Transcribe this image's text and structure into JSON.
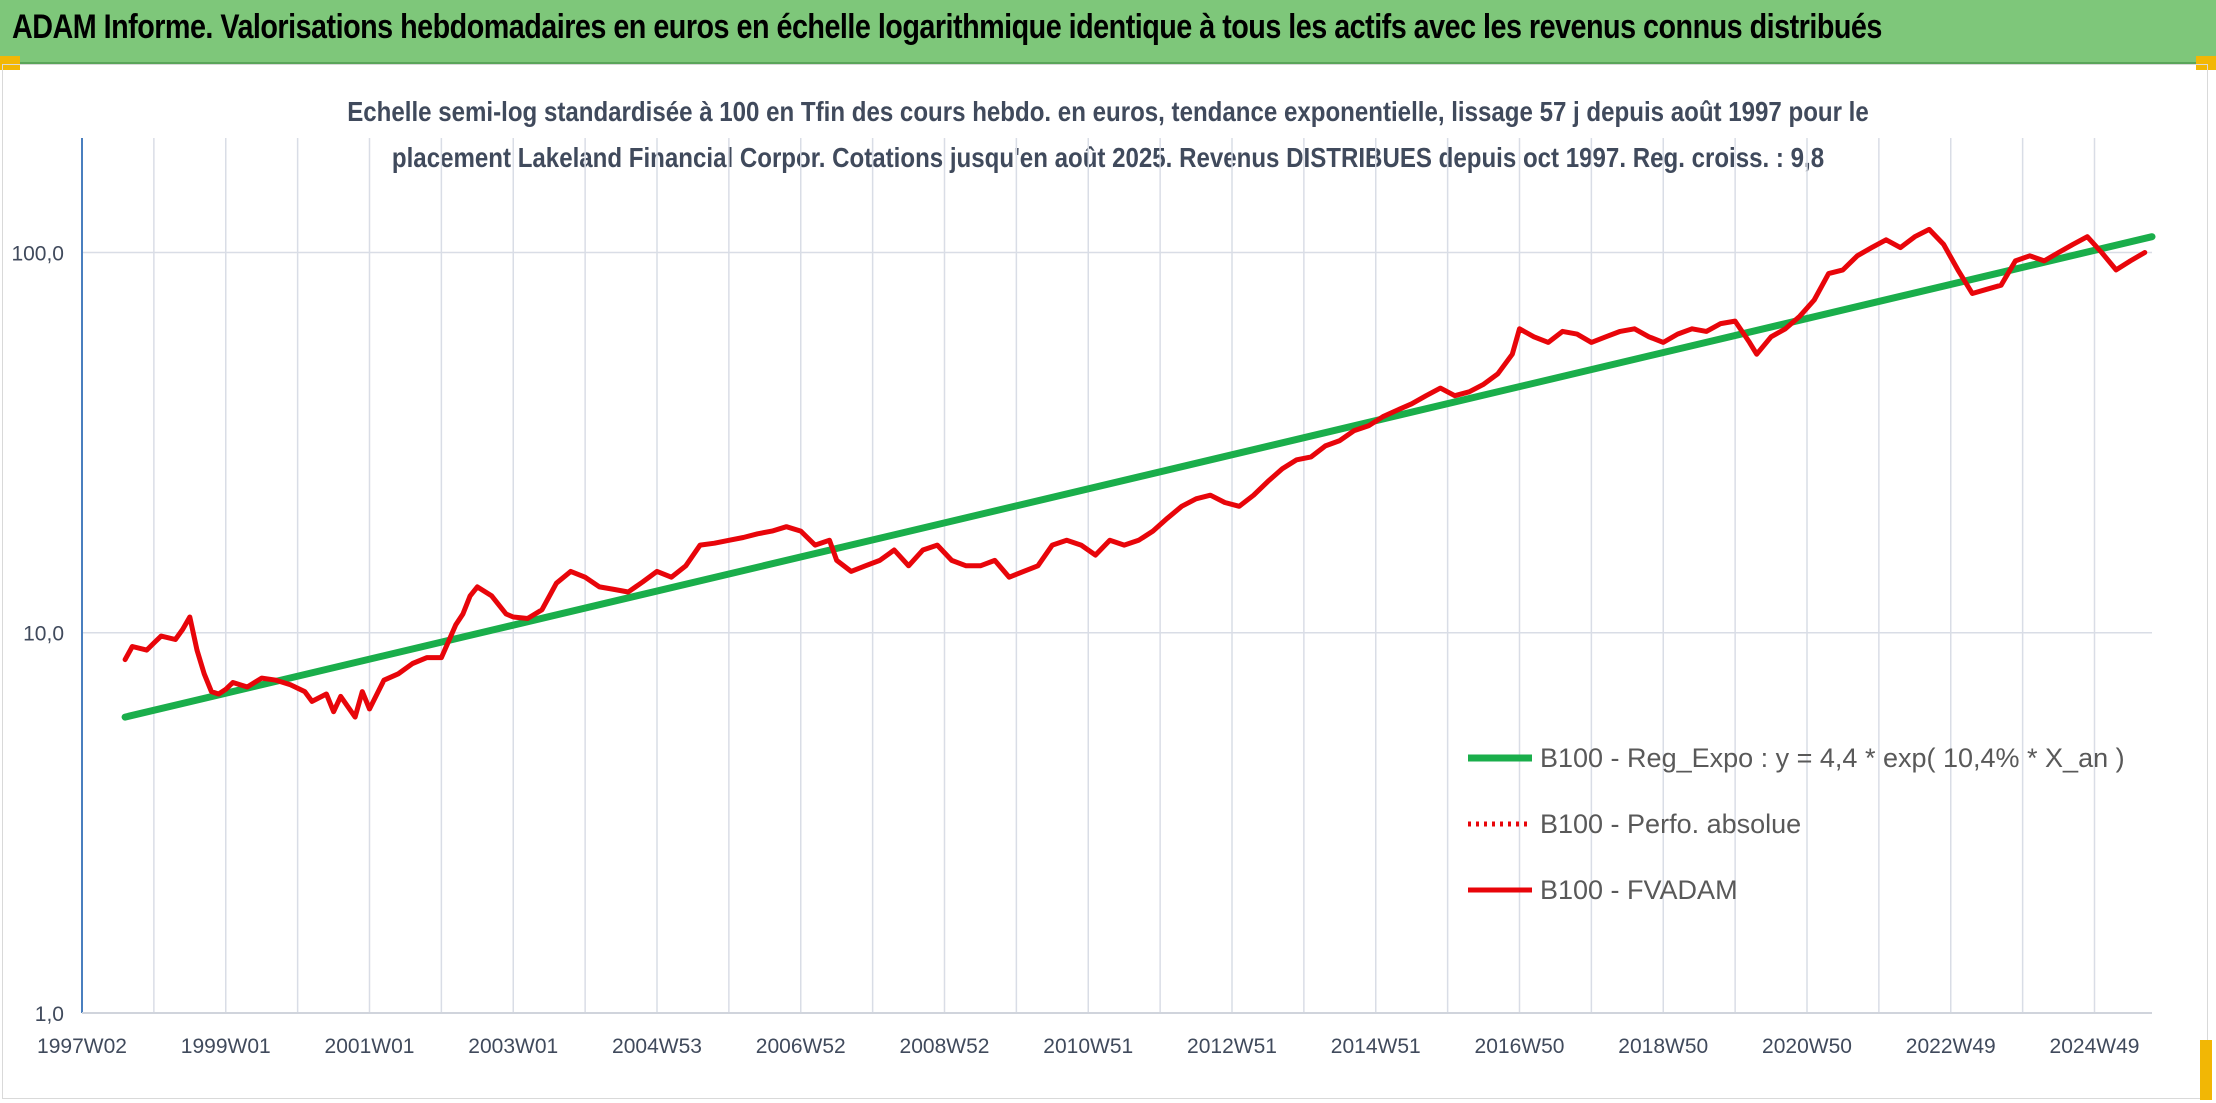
{
  "header": {
    "title": "ADAM Informe. Valorisations hebdomadaires en euros en échelle logarithmique identique à tous les actifs avec les revenus connus distribués"
  },
  "colors": {
    "header_bg": "#7ec77a",
    "trend": "#1aae4b",
    "series": "#e8050a",
    "accent": "#f2b705",
    "axis": "#4a7fbf"
  },
  "chart_data": {
    "type": "line",
    "title_lines": [
      "Echelle semi-log standardisée à 100 en Tfin des cours hebdo. en euros, tendance exponentielle, lissage 57 j depuis août 1997 pour le",
      "placement Lakeland Financial Corpor. Cotations jusqu'en août 2025. Revenus DISTRIBUES depuis oct 1997. Reg. croiss. : 9,8"
    ],
    "y_scale": "log",
    "ylim": [
      1,
      200
    ],
    "y_ticks": [
      {
        "value": 1,
        "label": "1,0"
      },
      {
        "value": 10,
        "label": "10,0"
      },
      {
        "value": 100,
        "label": "100,0"
      }
    ],
    "xlim": [
      1997.0,
      2025.8
    ],
    "x_ticks": [
      {
        "value": 1997.0,
        "label": "1997W02"
      },
      {
        "value": 1999.0,
        "label": "1999W01"
      },
      {
        "value": 2001.0,
        "label": "2001W01"
      },
      {
        "value": 2003.0,
        "label": "2003W01"
      },
      {
        "value": 2005.0,
        "label": "2004W53"
      },
      {
        "value": 2007.0,
        "label": "2006W52"
      },
      {
        "value": 2009.0,
        "label": "2008W52"
      },
      {
        "value": 2011.0,
        "label": "2010W51"
      },
      {
        "value": 2013.0,
        "label": "2012W51"
      },
      {
        "value": 2015.0,
        "label": "2014W51"
      },
      {
        "value": 2017.0,
        "label": "2016W50"
      },
      {
        "value": 2019.0,
        "label": "2018W50"
      },
      {
        "value": 2021.0,
        "label": "2020W50"
      },
      {
        "value": 2023.0,
        "label": "2022W49"
      },
      {
        "value": 2025.0,
        "label": "2024W49"
      }
    ],
    "grid": "vertical and horizontal",
    "legend_position": "bottom-right",
    "series": [
      {
        "name": "B100 - Reg_Expo : y = 4,4 * exp( 10,4% *  X_an )",
        "style": "solid",
        "color": "#1aae4b",
        "x": [
          1997.6,
          2025.8
        ],
        "y": [
          6.0,
          110.0
        ]
      },
      {
        "name": "B100 - Perfo. absolue",
        "style": "dotted",
        "color": "#e8050a",
        "x": [],
        "y": []
      },
      {
        "name": "B100 - FVADAM",
        "style": "solid",
        "color": "#e8050a",
        "x": [
          1997.6,
          1997.7,
          1997.9,
          1998.0,
          1998.1,
          1998.3,
          1998.4,
          1998.5,
          1998.6,
          1998.7,
          1998.8,
          1998.9,
          1999.0,
          1999.1,
          1999.3,
          1999.5,
          1999.7,
          1999.9,
          2000.1,
          2000.2,
          2000.4,
          2000.5,
          2000.6,
          2000.8,
          2000.9,
          2001.0,
          2001.2,
          2001.4,
          2001.6,
          2001.8,
          2002.0,
          2002.1,
          2002.2,
          2002.3,
          2002.4,
          2002.5,
          2002.7,
          2002.9,
          2003.0,
          2003.2,
          2003.4,
          2003.6,
          2003.8,
          2004.0,
          2004.2,
          2004.4,
          2004.6,
          2004.8,
          2005.0,
          2005.2,
          2005.4,
          2005.6,
          2005.8,
          2006.0,
          2006.2,
          2006.4,
          2006.6,
          2006.8,
          2007.0,
          2007.2,
          2007.4,
          2007.5,
          2007.7,
          2007.9,
          2008.1,
          2008.3,
          2008.5,
          2008.7,
          2008.9,
          2009.1,
          2009.3,
          2009.5,
          2009.7,
          2009.9,
          2010.1,
          2010.3,
          2010.5,
          2010.7,
          2010.9,
          2011.1,
          2011.3,
          2011.5,
          2011.7,
          2011.9,
          2012.1,
          2012.3,
          2012.5,
          2012.7,
          2012.9,
          2013.1,
          2013.3,
          2013.5,
          2013.7,
          2013.9,
          2014.1,
          2014.3,
          2014.5,
          2014.7,
          2014.9,
          2015.1,
          2015.3,
          2015.5,
          2015.7,
          2015.9,
          2016.1,
          2016.3,
          2016.5,
          2016.7,
          2016.9,
          2017.0,
          2017.2,
          2017.4,
          2017.6,
          2017.8,
          2018.0,
          2018.2,
          2018.4,
          2018.6,
          2018.8,
          2019.0,
          2019.2,
          2019.4,
          2019.6,
          2019.8,
          2020.0,
          2020.2,
          2020.3,
          2020.5,
          2020.7,
          2020.9,
          2021.1,
          2021.3,
          2021.5,
          2021.7,
          2021.9,
          2022.1,
          2022.3,
          2022.5,
          2022.7,
          2022.9,
          2023.1,
          2023.3,
          2023.5,
          2023.7,
          2023.9,
          2024.1,
          2024.3,
          2024.5,
          2024.7,
          2024.9,
          2025.1,
          2025.3,
          2025.5,
          2025.7
        ],
        "y": [
          8.5,
          9.2,
          9.0,
          9.4,
          9.8,
          9.6,
          10.2,
          11.0,
          9.0,
          7.8,
          7.0,
          6.9,
          7.1,
          7.4,
          7.2,
          7.6,
          7.5,
          7.3,
          7.0,
          6.6,
          6.9,
          6.2,
          6.8,
          6.0,
          7.0,
          6.3,
          7.5,
          7.8,
          8.3,
          8.6,
          8.6,
          9.5,
          10.5,
          11.2,
          12.5,
          13.2,
          12.5,
          11.2,
          11.0,
          10.9,
          11.5,
          13.5,
          14.5,
          14.0,
          13.2,
          13.0,
          12.8,
          13.6,
          14.5,
          14.0,
          15.0,
          17.0,
          17.2,
          17.5,
          17.8,
          18.2,
          18.5,
          19.0,
          18.5,
          17.0,
          17.5,
          15.5,
          14.5,
          15.0,
          15.5,
          16.5,
          15.0,
          16.5,
          17.0,
          15.5,
          15.0,
          15.0,
          15.5,
          14.0,
          14.5,
          15.0,
          17.0,
          17.5,
          17.0,
          16.0,
          17.5,
          17.0,
          17.5,
          18.5,
          20.0,
          21.5,
          22.5,
          23.0,
          22.0,
          21.5,
          23.0,
          25.0,
          27.0,
          28.5,
          29.0,
          31.0,
          32.0,
          34.0,
          35.0,
          37.0,
          38.5,
          40.0,
          42.0,
          44.0,
          42.0,
          43.0,
          45.0,
          48.0,
          54.0,
          63.0,
          60.0,
          58.0,
          62.0,
          61.0,
          58.0,
          60.0,
          62.0,
          63.0,
          60.0,
          58.0,
          61.0,
          63.0,
          62.0,
          65.0,
          66.0,
          58.0,
          54.0,
          60.0,
          63.0,
          68.0,
          75.0,
          88.0,
          90.0,
          98.0,
          103.0,
          108.0,
          103.0,
          110.0,
          115.0,
          105.0,
          90.0,
          78.0,
          80.0,
          82.0,
          95.0,
          98.0,
          95.0,
          100.0,
          105.0,
          110.0,
          100.0,
          90.0,
          95.0,
          100.0
        ]
      }
    ]
  }
}
